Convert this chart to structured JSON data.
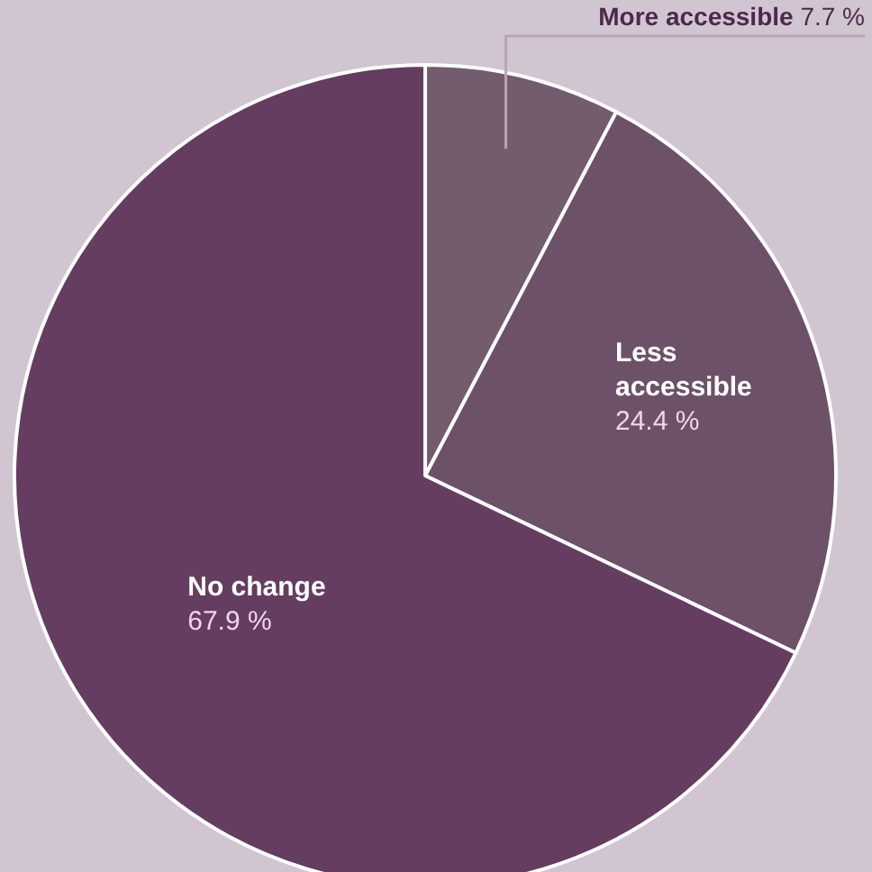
{
  "chart_data": {
    "type": "pie",
    "categories": [
      "More accessible",
      "Less accessible",
      "No change"
    ],
    "values": [
      7.7,
      24.4,
      67.9
    ],
    "value_labels": [
      "7.7 %",
      "24.4 %",
      "67.9 %"
    ],
    "colors": [
      "#735c6e",
      "#6c5168",
      "#643d61"
    ]
  }
}
